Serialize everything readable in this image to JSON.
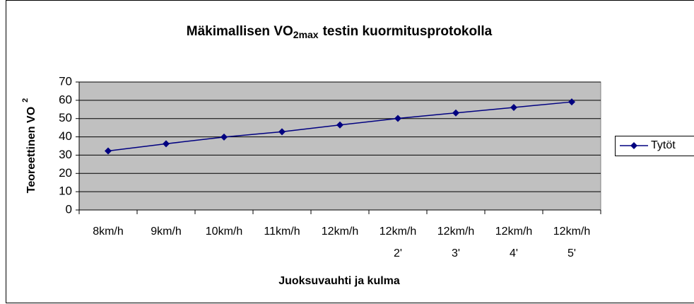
{
  "chart_data": {
    "type": "line",
    "title": [
      "Mäkimallisen VO",
      "2max",
      "testin kuormitusprotokolla"
    ],
    "y_label": [
      "Teoreettinen VO",
      "2"
    ],
    "x_label": "Juoksuvauhti ja kulma",
    "categories": [
      "8km/h",
      "9km/h",
      "10km/h",
      "11km/h",
      "12km/h",
      [
        "12km/h",
        "2'"
      ],
      [
        "12km/h",
        "3'"
      ],
      [
        "12km/h",
        "4'"
      ],
      [
        "12km/h",
        "5'"
      ]
    ],
    "series": [
      {
        "name": "Tytöt",
        "color": "#000080",
        "values": [
          32.3,
          36.2,
          39.9,
          42.8,
          46.5,
          50.1,
          53.1,
          56.1,
          59.1
        ]
      }
    ],
    "ylim": [
      0,
      70
    ],
    "yticks": [
      0,
      10,
      20,
      30,
      40,
      50,
      60,
      70
    ],
    "grid": true,
    "legend": "right"
  }
}
